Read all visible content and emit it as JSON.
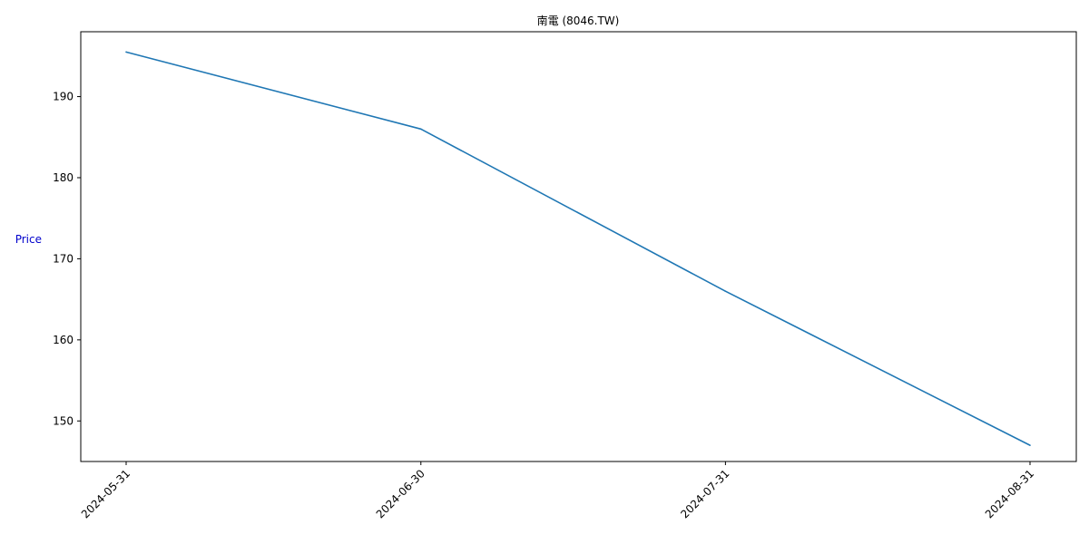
{
  "chart_data": {
    "type": "line",
    "title": "南電 (8046.TW)",
    "xlabel": "",
    "ylabel": "Price",
    "ylabel_color": "#0000cc",
    "line_color": "#1f77b4",
    "grid": false,
    "legend": "none",
    "x": [
      "2024-05-31",
      "2024-06-30",
      "2024-07-31",
      "2024-08-31"
    ],
    "x_tick_labels": [
      "2024-05-31",
      "2024-06-30",
      "2024-07-31",
      "2024-08-31"
    ],
    "y": [
      195.5,
      186.0,
      166.0,
      147.0
    ],
    "ylim": [
      145.0,
      198.0
    ],
    "y_ticks": [
      150,
      160,
      170,
      180,
      190
    ]
  }
}
